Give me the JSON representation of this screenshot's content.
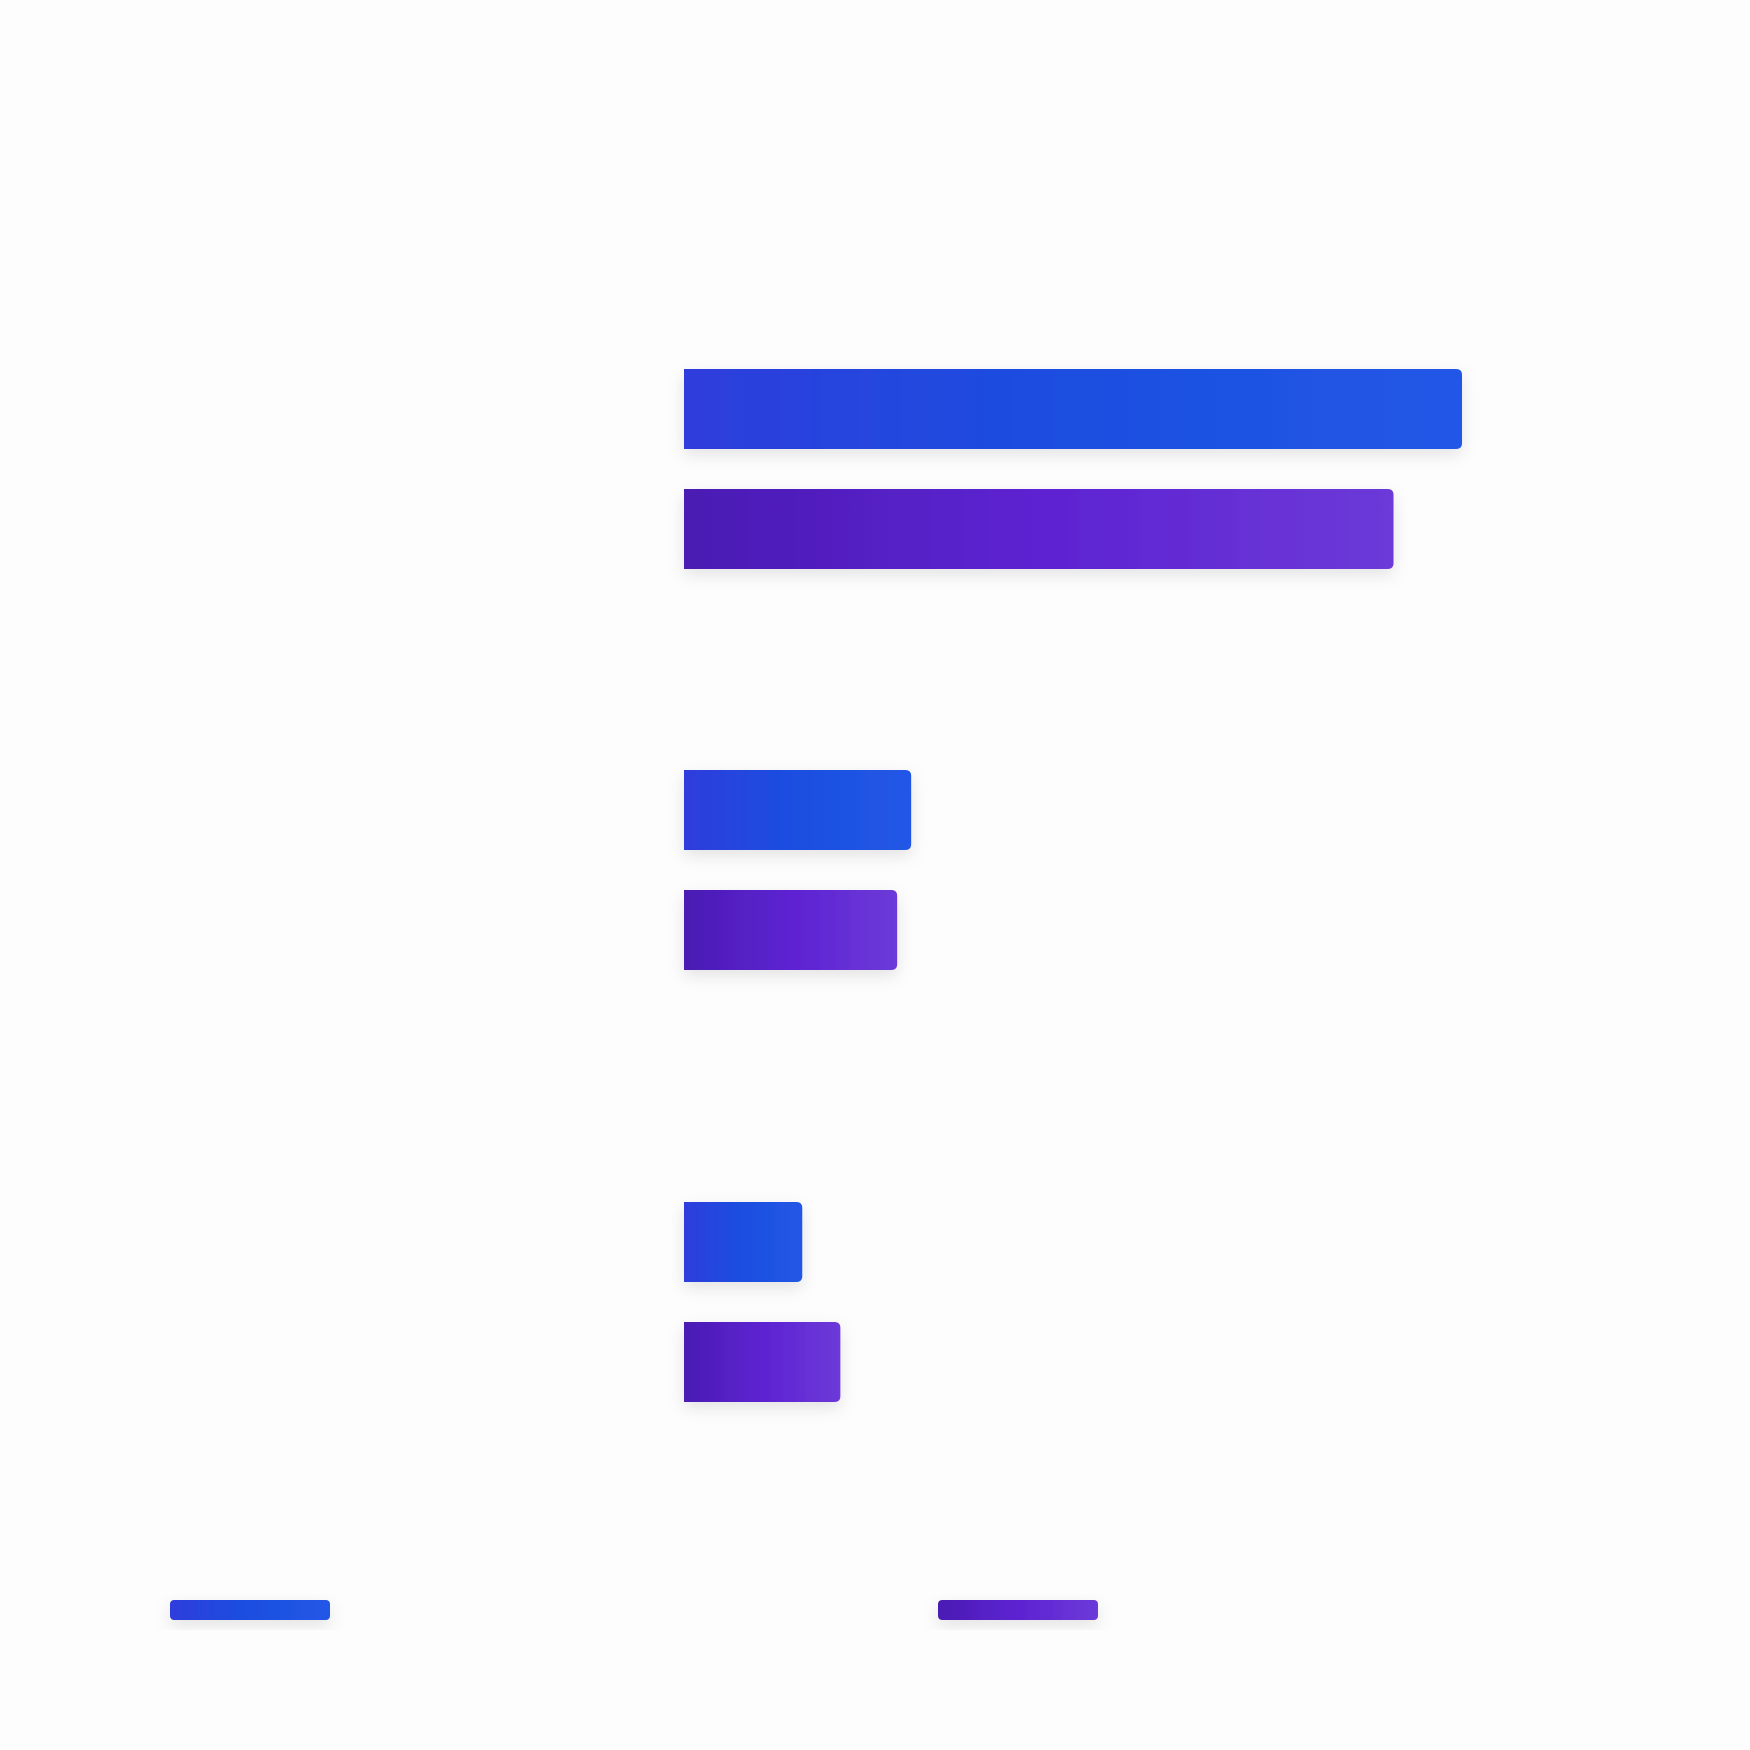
{
  "chart_data": {
    "type": "bar",
    "orientation": "horizontal",
    "categories": [
      "",
      "",
      ""
    ],
    "series": [
      {
        "values": [
          1000,
          292,
          152
        ],
        "color": "#1a4fe0",
        "gradient": [
          "#2f3ddc",
          "#1a4fe0",
          "#2457e6"
        ]
      },
      {
        "values": [
          912,
          274,
          201
        ],
        "color": "#5a22cc",
        "gradient": [
          "#4a1db3",
          "#5d22d2",
          "#6c3ad8"
        ]
      }
    ],
    "xlim": [
      0,
      1000
    ],
    "grid": false,
    "legend": {
      "position": "bottom",
      "entries": [
        "",
        ""
      ]
    }
  }
}
